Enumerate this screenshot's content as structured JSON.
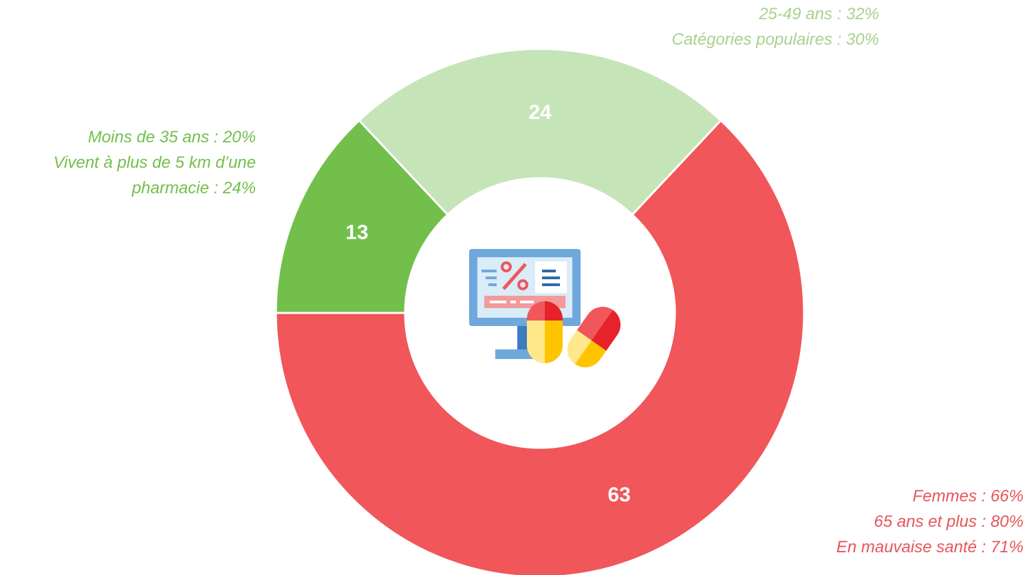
{
  "chart_data": {
    "type": "donut",
    "values": [
      63,
      13,
      24
    ],
    "colors": [
      "#f0565a",
      "#72bf4b",
      "#c5e4b8"
    ],
    "annotations": [
      [
        "Femmes : 66%",
        "65 ans et plus : 80%",
        "En mauvaise santé : 71%"
      ],
      [
        "Moins de 35 ans : 20%",
        "Vivent à plus de 5 km d’une pharmacie : 24%"
      ],
      [
        "25-49 ans : 32%",
        "Catégories populaires : 30%"
      ]
    ],
    "annotation_colors": [
      "#e8545a",
      "#72bf4b",
      "#a9d18e"
    ]
  }
}
